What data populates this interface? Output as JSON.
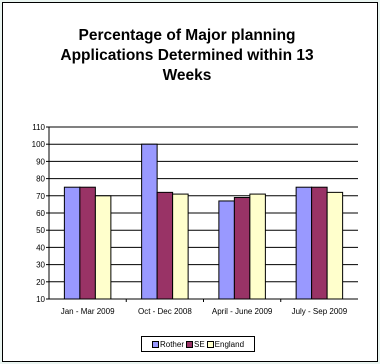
{
  "chart_data": {
    "type": "bar",
    "title_lines": [
      "Percentage of Major planning",
      "Applications Determined within 13",
      "Weeks"
    ],
    "categories": [
      "Jan - Mar 2009",
      "Oct - Dec 2008",
      "April - June 2009",
      "July - Sep 2009"
    ],
    "series": [
      {
        "name": "Rother",
        "values": [
          75,
          100,
          67,
          75
        ],
        "color": "#9999ff"
      },
      {
        "name": "SE",
        "values": [
          75,
          72,
          69,
          75
        ],
        "color": "#993366"
      },
      {
        "name": "England",
        "values": [
          70,
          71,
          71,
          72
        ],
        "color": "#ffffcc"
      }
    ],
    "y_ticks": [
      10,
      20,
      30,
      40,
      50,
      60,
      70,
      80,
      90,
      100,
      110
    ],
    "ylim": [
      10,
      110
    ],
    "grid": true,
    "legend_position": "bottom"
  }
}
